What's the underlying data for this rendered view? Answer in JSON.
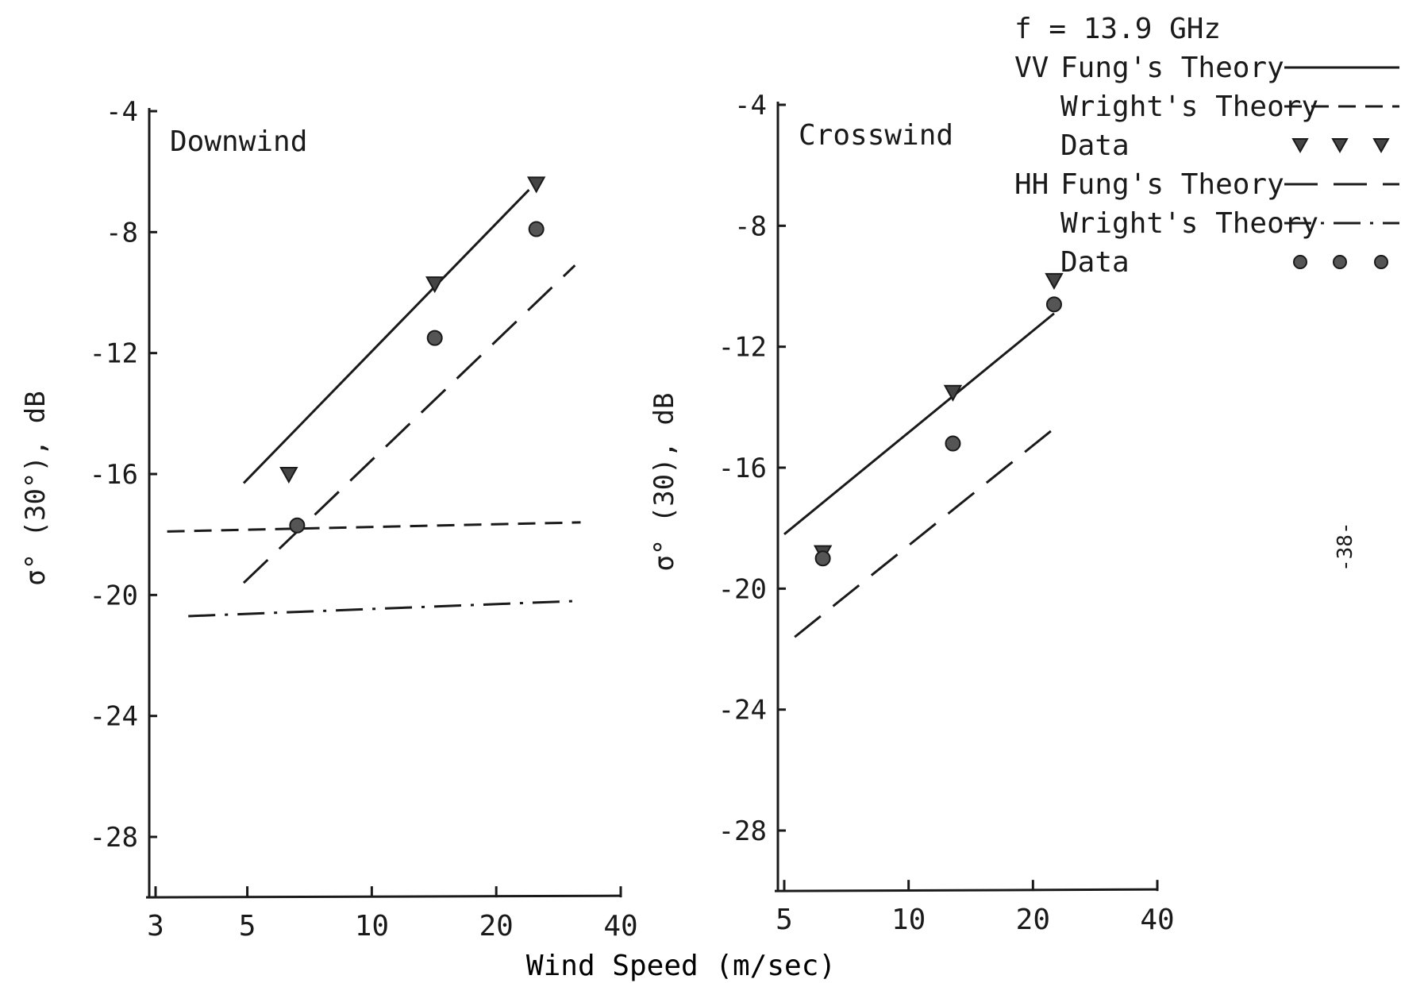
{
  "page": {
    "number": "-38-"
  },
  "legend": {
    "frequency": "f = 13.9 GHz",
    "groups": [
      {
        "pol": "VV",
        "items": [
          {
            "label": "Fung's Theory",
            "style": "solid"
          },
          {
            "label": "Wright's Theory",
            "style": "short-dash"
          },
          {
            "label": "Data",
            "style": "triangle"
          }
        ]
      },
      {
        "pol": "HH",
        "items": [
          {
            "label": "Fung's Theory",
            "style": "long-dash"
          },
          {
            "label": "Wright's Theory",
            "style": "dash-dot"
          },
          {
            "label": "Data",
            "style": "circle"
          }
        ]
      }
    ]
  },
  "shared_xlabel": "Wind Speed (m/sec)",
  "chart_data": [
    {
      "type": "line",
      "title": "Downwind",
      "ylabel": "σ° (30°), dB",
      "xscale": "log",
      "xlim": [
        3,
        40
      ],
      "ylim": [
        -30,
        -4
      ],
      "xticks": [
        3,
        5,
        10,
        20,
        40
      ],
      "xtick_labels": [
        "3",
        "5",
        "10",
        "20",
        "40"
      ],
      "yticks": [
        -4,
        -8,
        -12,
        -16,
        -20,
        -24,
        -28
      ],
      "ytick_labels": [
        "-4",
        "-8",
        "-12",
        "-16",
        "-20",
        "-24",
        "-28"
      ],
      "grid": false,
      "series": [
        {
          "name": "VV Fung's Theory",
          "style": "solid",
          "x": [
            4.9,
            24
          ],
          "y": [
            -16.3,
            -6.6
          ]
        },
        {
          "name": "VV Wright's Theory",
          "style": "short-dash",
          "x": [
            3.2,
            32
          ],
          "y": [
            -17.9,
            -17.6
          ]
        },
        {
          "name": "VV Data",
          "style": "triangle",
          "x": [
            6.3,
            14.2,
            25
          ],
          "y": [
            -16.0,
            -9.7,
            -6.4
          ]
        },
        {
          "name": "HH Fung's Theory",
          "style": "long-dash",
          "x": [
            4.9,
            31
          ],
          "y": [
            -19.6,
            -9.1
          ]
        },
        {
          "name": "HH Wright's Theory",
          "style": "dash-dot",
          "x": [
            3.6,
            31
          ],
          "y": [
            -20.7,
            -20.2
          ]
        },
        {
          "name": "HH Data",
          "style": "circle",
          "x": [
            6.6,
            14.2,
            25
          ],
          "y": [
            -17.7,
            -11.5,
            -7.9
          ]
        }
      ]
    },
    {
      "type": "line",
      "title": "Crosswind",
      "ylabel": "σ° (30), dB",
      "xscale": "log",
      "xlim": [
        5,
        40
      ],
      "ylim": [
        -30,
        -4
      ],
      "xticks": [
        5,
        10,
        20,
        40
      ],
      "xtick_labels": [
        "5",
        "10",
        "20",
        "40"
      ],
      "yticks": [
        -4,
        -8,
        -12,
        -16,
        -20,
        -24,
        -28
      ],
      "ytick_labels": [
        "-4",
        "-8",
        "-12",
        "-16",
        "-20",
        "-24",
        "-28"
      ],
      "grid": false,
      "series": [
        {
          "name": "VV Fung's Theory",
          "style": "solid",
          "x": [
            5,
            22.5
          ],
          "y": [
            -18.2,
            -10.9
          ]
        },
        {
          "name": "VV Data",
          "style": "triangle",
          "x": [
            6.2,
            12.8,
            22.5
          ],
          "y": [
            -18.8,
            -13.5,
            -9.8
          ]
        },
        {
          "name": "HH Fung's Theory",
          "style": "long-dash",
          "x": [
            5.3,
            23
          ],
          "y": [
            -21.6,
            -14.6
          ]
        },
        {
          "name": "HH Data",
          "style": "circle",
          "x": [
            6.2,
            12.8,
            22.5
          ],
          "y": [
            -19.0,
            -15.2,
            -10.6
          ]
        }
      ]
    }
  ]
}
